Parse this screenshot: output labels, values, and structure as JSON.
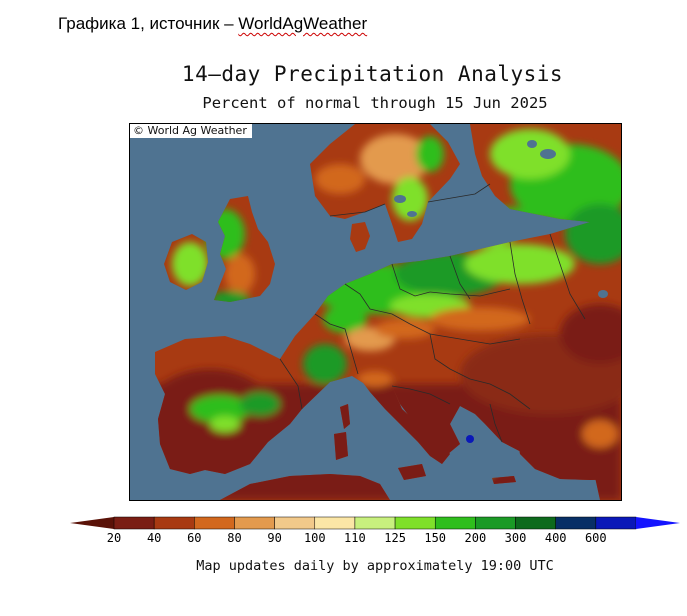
{
  "caption": {
    "prefix": "Графика 1, источник – ",
    "source": "WorldAgWeather"
  },
  "map": {
    "title": "14–day Precipitation Analysis",
    "subtitle": "Percent of normal through 15 Jun 2025",
    "credit": "© World Ag Weather",
    "region": "Europe",
    "colors": {
      "sea": "#4f7391",
      "border_line": "#2a2a2a"
    }
  },
  "legend": {
    "ticks": [
      "20",
      "40",
      "60",
      "80",
      "90",
      "100",
      "110",
      "125",
      "150",
      "200",
      "300",
      "400",
      "600"
    ],
    "colors": [
      "#7a1e14",
      "#a83a12",
      "#d2681e",
      "#e39a4e",
      "#f2c98a",
      "#fbe6a6",
      "#c8f07e",
      "#7fe02a",
      "#2fbe1c",
      "#1a9a25",
      "#0d6a1c",
      "#082f66",
      "#0a18b8",
      "#1010f0"
    ],
    "low_arrow_color": "#5a1208",
    "high_arrow_color": "#1414ff"
  },
  "footer": "Map updates daily by approximately 19:00 UTC"
}
